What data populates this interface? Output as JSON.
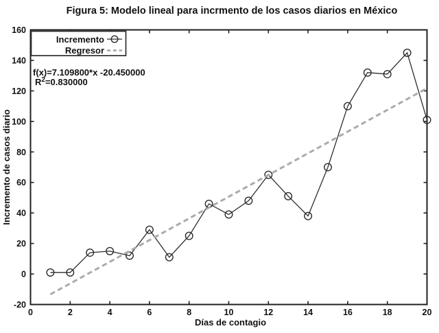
{
  "chart_data": {
    "type": "line",
    "title": "Figura 5: Modelo lineal para incrmento de los casos diarios en México",
    "xlabel": "Días de contagio",
    "ylabel": "Incremento de casos diario",
    "xlim": [
      0,
      20
    ],
    "ylim": [
      -20,
      160
    ],
    "xticks": [
      0,
      2,
      4,
      6,
      8,
      10,
      12,
      14,
      16,
      18,
      20
    ],
    "yticks": [
      -20,
      0,
      20,
      40,
      60,
      80,
      100,
      120,
      140,
      160
    ],
    "grid": false,
    "legend_position": "top-left",
    "colors": {
      "line": "#2d2d2d",
      "marker": "#2d2d2d",
      "regressor": "#ababab",
      "frame": "#1f1f1f",
      "background": "#ffffff",
      "text": "#111111"
    },
    "series": [
      {
        "name": "Incremento",
        "type": "line+marker",
        "marker": "open-circle",
        "color": "#2d2d2d",
        "x": [
          1,
          2,
          3,
          4,
          5,
          6,
          7,
          8,
          9,
          10,
          11,
          12,
          13,
          14,
          15,
          16,
          17,
          18,
          19,
          20
        ],
        "y": [
          1,
          1,
          14,
          15,
          12,
          29,
          11,
          25,
          46,
          39,
          48,
          65,
          51,
          38,
          70,
          110,
          132,
          131,
          145,
          101
        ]
      },
      {
        "name": "Regresor",
        "type": "dashed-fit-line",
        "color": "#ababab",
        "fit": {
          "slope": 7.1098,
          "intercept": -20.45,
          "x_start": 1,
          "x_end": 20
        }
      }
    ],
    "annotations": {
      "equation": "f(x)=7.109800*x -20.450000",
      "r2_base": "R",
      "r2_sup": "2",
      "r2_rest": "=0.830000"
    }
  }
}
